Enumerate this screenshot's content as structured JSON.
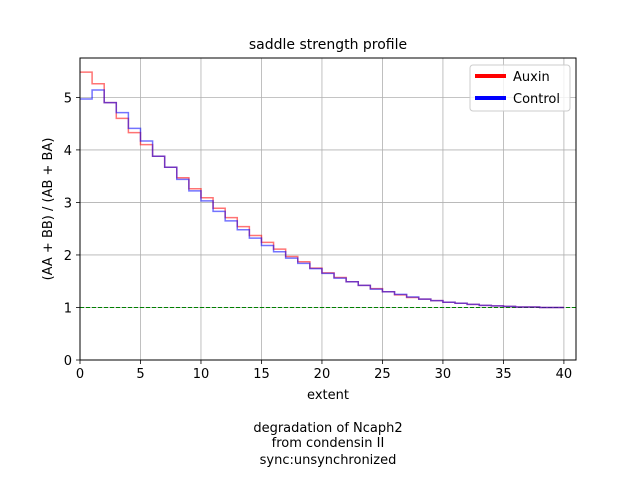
{
  "chart_data": {
    "type": "line",
    "step": true,
    "title": "saddle strength profile",
    "xlabel": "extent",
    "ylabel": "(AA + BB) / (AB + BA)",
    "xlim": [
      0,
      41
    ],
    "ylim": [
      0,
      5.75
    ],
    "xticks": [
      0,
      5,
      10,
      15,
      20,
      25,
      30,
      35,
      40
    ],
    "yticks": [
      0,
      1,
      2,
      3,
      4,
      5
    ],
    "grid": true,
    "legend_position": "top-right",
    "reference_line": {
      "y": 1,
      "color": "#008000",
      "style": "dashed"
    },
    "x": [
      0,
      1,
      2,
      3,
      4,
      5,
      6,
      7,
      8,
      9,
      10,
      11,
      12,
      13,
      14,
      15,
      16,
      17,
      18,
      19,
      20,
      21,
      22,
      23,
      24,
      25,
      26,
      27,
      28,
      29,
      30,
      31,
      32,
      33,
      34,
      35,
      36,
      37,
      38,
      39
    ],
    "series": [
      {
        "name": "Auxin",
        "color": "#ff0000",
        "values": [
          5.48,
          5.26,
          4.9,
          4.6,
          4.33,
          4.1,
          3.88,
          3.67,
          3.47,
          3.26,
          3.09,
          2.89,
          2.71,
          2.54,
          2.37,
          2.24,
          2.11,
          1.97,
          1.87,
          1.75,
          1.66,
          1.57,
          1.49,
          1.42,
          1.36,
          1.3,
          1.24,
          1.19,
          1.16,
          1.13,
          1.1,
          1.08,
          1.06,
          1.04,
          1.03,
          1.02,
          1.01,
          1.01,
          1.0,
          1.0
        ]
      },
      {
        "name": "Control",
        "color": "#0000ff",
        "values": [
          4.97,
          5.14,
          4.9,
          4.71,
          4.41,
          4.17,
          3.88,
          3.67,
          3.44,
          3.22,
          3.03,
          2.83,
          2.65,
          2.48,
          2.32,
          2.18,
          2.06,
          1.94,
          1.84,
          1.74,
          1.65,
          1.56,
          1.49,
          1.42,
          1.35,
          1.3,
          1.25,
          1.2,
          1.16,
          1.13,
          1.1,
          1.08,
          1.06,
          1.04,
          1.03,
          1.02,
          1.01,
          1.01,
          1.0,
          1.0
        ]
      }
    ]
  },
  "caption": [
    "degradation of Ncaph2",
    "from condensin II",
    "sync:unsynchronized"
  ]
}
